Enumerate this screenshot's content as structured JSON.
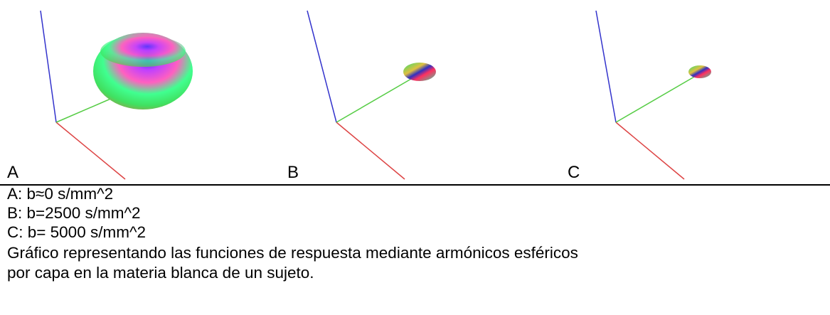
{
  "panels": [
    {
      "label": "A"
    },
    {
      "label": "B"
    },
    {
      "label": "C"
    }
  ],
  "legend": [
    "A: b≈0 s/mm^2",
    "B: b=2500 s/mm^2",
    "C: b= 5000 s/mm^2"
  ],
  "description": [
    "Gráfico representando las funciones de respuesta mediante armónicos esféricos",
    "por capa en la materia blanca de un sujeto."
  ]
}
